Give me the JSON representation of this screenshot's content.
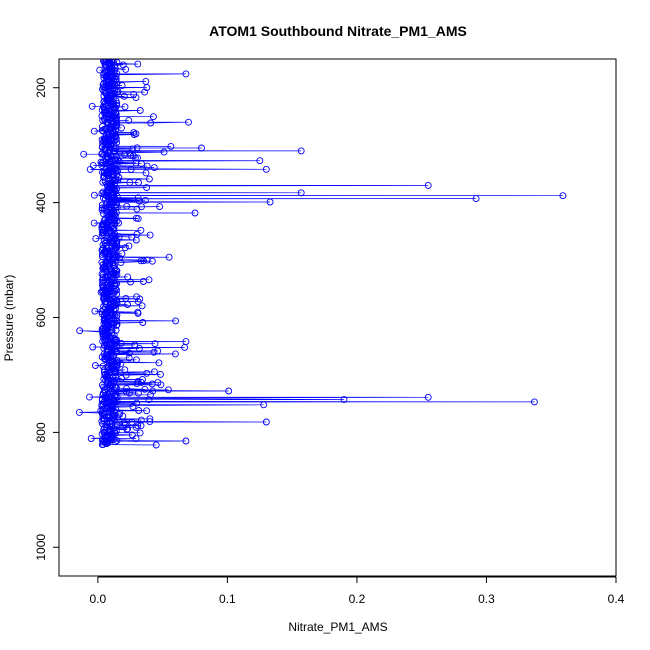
{
  "chart_data": {
    "type": "scatter",
    "title": "ATOM1 Southbound Nitrate_PM1_AMS",
    "xlabel": "Nitrate_PM1_AMS",
    "ylabel": "Pressure (mbar)",
    "xlim": [
      -0.03,
      0.4
    ],
    "ylim": [
      1050,
      150
    ],
    "y_reversed": true,
    "xticks": [
      0.0,
      0.1,
      0.2,
      0.3,
      0.4
    ],
    "xtick_labels": [
      "0.0",
      "0.1",
      "0.2",
      "0.3",
      "0.4"
    ],
    "yticks": [
      200,
      400,
      600,
      800,
      1000
    ],
    "ytick_labels": [
      "200",
      "400",
      "600",
      "800",
      "1000"
    ],
    "grid": false,
    "connected_points": true,
    "point_style": "open-circle",
    "series_color": "#0000ff",
    "outliers": [
      {
        "x": 0.359,
        "y": 388
      },
      {
        "x": 0.292,
        "y": 393
      },
      {
        "x": 0.255,
        "y": 370
      },
      {
        "x": 0.157,
        "y": 383
      },
      {
        "x": 0.133,
        "y": 399
      },
      {
        "x": 0.157,
        "y": 310
      },
      {
        "x": 0.125,
        "y": 327
      },
      {
        "x": 0.13,
        "y": 342
      },
      {
        "x": 0.337,
        "y": 747
      },
      {
        "x": 0.255,
        "y": 739
      },
      {
        "x": 0.19,
        "y": 743
      },
      {
        "x": 0.128,
        "y": 752
      },
      {
        "x": 0.13,
        "y": 782
      },
      {
        "x": 0.101,
        "y": 728
      },
      {
        "x": 0.068,
        "y": 642
      },
      {
        "x": 0.067,
        "y": 652
      },
      {
        "x": 0.06,
        "y": 606
      },
      {
        "x": 0.055,
        "y": 495
      },
      {
        "x": 0.068,
        "y": 176
      },
      {
        "x": 0.07,
        "y": 260
      },
      {
        "x": 0.08,
        "y": 305
      },
      {
        "x": 0.075,
        "y": 418
      },
      {
        "x": 0.068,
        "y": 815
      },
      {
        "x": 0.045,
        "y": 822
      }
    ]
  }
}
